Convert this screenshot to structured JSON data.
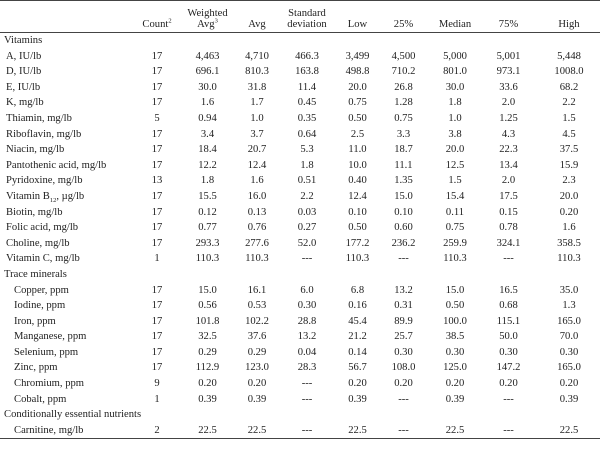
{
  "headers": {
    "count": "Count",
    "count_sup": "2",
    "weighted_line1": "Weighted",
    "weighted_line2": "Avg",
    "weighted_sup": "3",
    "avg": "Avg",
    "sd_line1": "Standard",
    "sd_line2": "deviation",
    "low": "Low",
    "p25": "25%",
    "median": "Median",
    "p75": "75%",
    "high": "High"
  },
  "sections": [
    {
      "title": "Vitamins",
      "rows": [
        {
          "label": "A, IU/lb",
          "count": "17",
          "wavg": "4,463",
          "avg": "4,710",
          "sd": "466.3",
          "low": "3,499",
          "p25": "4,500",
          "median": "5,000",
          "p75": "5,001",
          "high": "5,448"
        },
        {
          "label": "D, IU/lb",
          "count": "17",
          "wavg": "696.1",
          "avg": "810.3",
          "sd": "163.8",
          "low": "498.8",
          "p25": "710.2",
          "median": "801.0",
          "p75": "973.1",
          "high": "1008.0"
        },
        {
          "label": "E, IU/lb",
          "count": "17",
          "wavg": "30.0",
          "avg": "31.8",
          "sd": "11.4",
          "low": "20.0",
          "p25": "26.8",
          "median": "30.0",
          "p75": "33.6",
          "high": "68.2"
        },
        {
          "label": "K, mg/lb",
          "count": "17",
          "wavg": "1.6",
          "avg": "1.7",
          "sd": "0.45",
          "low": "0.75",
          "p25": "1.28",
          "median": "1.8",
          "p75": "2.0",
          "high": "2.2"
        },
        {
          "label": "Thiamin, mg/lb",
          "count": "5",
          "wavg": "0.94",
          "avg": "1.0",
          "sd": "0.35",
          "low": "0.50",
          "p25": "0.75",
          "median": "1.0",
          "p75": "1.25",
          "high": "1.5"
        },
        {
          "label": "Riboflavin, mg/lb",
          "count": "17",
          "wavg": "3.4",
          "avg": "3.7",
          "sd": "0.64",
          "low": "2.5",
          "p25": "3.3",
          "median": "3.8",
          "p75": "4.3",
          "high": "4.5"
        },
        {
          "label": "Niacin, mg/lb",
          "count": "17",
          "wavg": "18.4",
          "avg": "20.7",
          "sd": "5.3",
          "low": "11.0",
          "p25": "18.7",
          "median": "20.0",
          "p75": "22.3",
          "high": "37.5"
        },
        {
          "label": "Pantothenic acid, mg/lb",
          "count": "17",
          "wavg": "12.2",
          "avg": "12.4",
          "sd": "1.8",
          "low": "10.0",
          "p25": "11.1",
          "median": "12.5",
          "p75": "13.4",
          "high": "15.9"
        },
        {
          "label": "Pyridoxine, mg/lb",
          "count": "13",
          "wavg": "1.8",
          "avg": "1.6",
          "sd": "0.51",
          "low": "0.40",
          "p25": "1.35",
          "median": "1.5",
          "p75": "2.0",
          "high": "2.3"
        },
        {
          "label": "Vitamin B",
          "label_sub": "12",
          "label_sub_tail": ", µg/lb",
          "count": "17",
          "wavg": "15.5",
          "avg": "16.0",
          "sd": "2.2",
          "low": "12.4",
          "p25": "15.0",
          "median": "15.4",
          "p75": "17.5",
          "high": "20.0"
        },
        {
          "label": "Biotin, mg/lb",
          "count": "17",
          "wavg": "0.12",
          "avg": "0.13",
          "sd": "0.03",
          "low": "0.10",
          "p25": "0.10",
          "median": "0.11",
          "p75": "0.15",
          "high": "0.20"
        },
        {
          "label": "Folic acid, mg/lb",
          "count": "17",
          "wavg": "0.77",
          "avg": "0.76",
          "sd": "0.27",
          "low": "0.50",
          "p25": "0.60",
          "median": "0.75",
          "p75": "0.78",
          "high": "1.6"
        },
        {
          "label": "Choline, mg/lb",
          "count": "17",
          "wavg": "293.3",
          "avg": "277.6",
          "sd": "52.0",
          "low": "177.2",
          "p25": "236.2",
          "median": "259.9",
          "p75": "324.1",
          "high": "358.5"
        },
        {
          "label": "Vitamin C, mg/lb",
          "count": "1",
          "wavg": "110.3",
          "avg": "110.3",
          "sd": "---",
          "low": "110.3",
          "p25": "---",
          "median": "110.3",
          "p75": "---",
          "high": "110.3"
        }
      ]
    },
    {
      "title": "Trace minerals",
      "rows": [
        {
          "label": "Copper, ppm",
          "count": "17",
          "wavg": "15.0",
          "avg": "16.1",
          "sd": "6.0",
          "low": "6.8",
          "p25": "13.2",
          "median": "15.0",
          "p75": "16.5",
          "high": "35.0"
        },
        {
          "label": "Iodine, ppm",
          "count": "17",
          "wavg": "0.56",
          "avg": "0.53",
          "sd": "0.30",
          "low": "0.16",
          "p25": "0.31",
          "median": "0.50",
          "p75": "0.68",
          "high": "1.3"
        },
        {
          "label": "Iron, ppm",
          "count": "17",
          "wavg": "101.8",
          "avg": "102.2",
          "sd": "28.8",
          "low": "45.4",
          "p25": "89.9",
          "median": "100.0",
          "p75": "115.1",
          "high": "165.0"
        },
        {
          "label": "Manganese, ppm",
          "count": "17",
          "wavg": "32.5",
          "avg": "37.6",
          "sd": "13.2",
          "low": "21.2",
          "p25": "25.7",
          "median": "38.5",
          "p75": "50.0",
          "high": "70.0"
        },
        {
          "label": "Selenium, ppm",
          "count": "17",
          "wavg": "0.29",
          "avg": "0.29",
          "sd": "0.04",
          "low": "0.14",
          "p25": "0.30",
          "median": "0.30",
          "p75": "0.30",
          "high": "0.30"
        },
        {
          "label": "Zinc, ppm",
          "count": "17",
          "wavg": "112.9",
          "avg": "123.0",
          "sd": "28.3",
          "low": "56.7",
          "p25": "108.0",
          "median": "125.0",
          "p75": "147.2",
          "high": "165.0"
        },
        {
          "label": "Chromium, ppm",
          "count": "9",
          "wavg": "0.20",
          "avg": "0.20",
          "sd": "---",
          "low": "0.20",
          "p25": "0.20",
          "median": "0.20",
          "p75": "0.20",
          "high": "0.20"
        },
        {
          "label": "Cobalt, ppm",
          "count": "1",
          "wavg": "0.39",
          "avg": "0.39",
          "sd": "---",
          "low": "0.39",
          "p25": "---",
          "median": "0.39",
          "p75": "---",
          "high": "0.39"
        }
      ]
    },
    {
      "title": "Conditionally essential nutrients",
      "rows": [
        {
          "label": "Carnitine, mg/lb",
          "count": "2",
          "wavg": "22.5",
          "avg": "22.5",
          "sd": "---",
          "low": "22.5",
          "p25": "---",
          "median": "22.5",
          "p75": "---",
          "high": "22.5"
        }
      ]
    }
  ]
}
